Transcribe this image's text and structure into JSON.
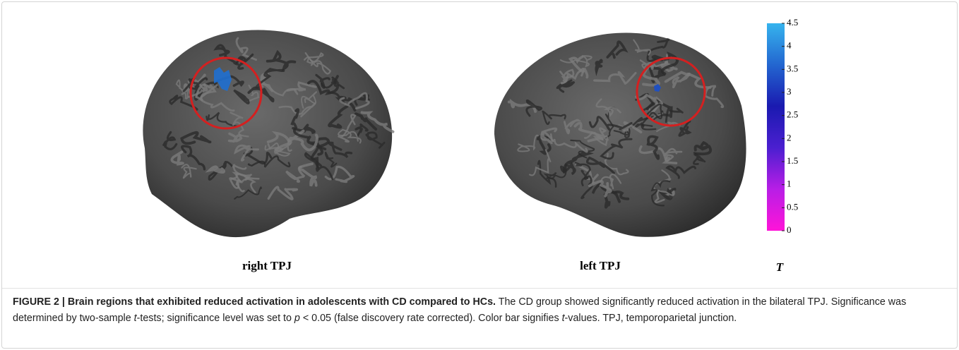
{
  "figure": {
    "panels": [
      {
        "label": "right TPJ"
      },
      {
        "label": "left TPJ"
      }
    ],
    "colorbar": {
      "label": "T",
      "lim": [
        0,
        4.5
      ],
      "ticks": [
        0,
        0.5,
        1,
        1.5,
        2,
        2.5,
        3,
        3.5,
        4,
        4.5
      ],
      "colors": [
        "#ff14d8",
        "#b81ee6",
        "#4b1fd0",
        "#1a1ab0",
        "#2366d0",
        "#36b4ee"
      ]
    },
    "caption": {
      "title": "FIGURE 2 | Brain regions that exhibited reduced activation in adolescents with CD compared to HCs.",
      "body": [
        " The CD group showed significantly reduced activation in the bilateral TPJ. Significance was determined by two-sample ",
        "t",
        "-tests; significance level was set to ",
        "p",
        " < 0.05 (false discovery rate corrected). Color bar signifies ",
        "t",
        "-values. TPJ, temporoparietal junction."
      ]
    }
  }
}
